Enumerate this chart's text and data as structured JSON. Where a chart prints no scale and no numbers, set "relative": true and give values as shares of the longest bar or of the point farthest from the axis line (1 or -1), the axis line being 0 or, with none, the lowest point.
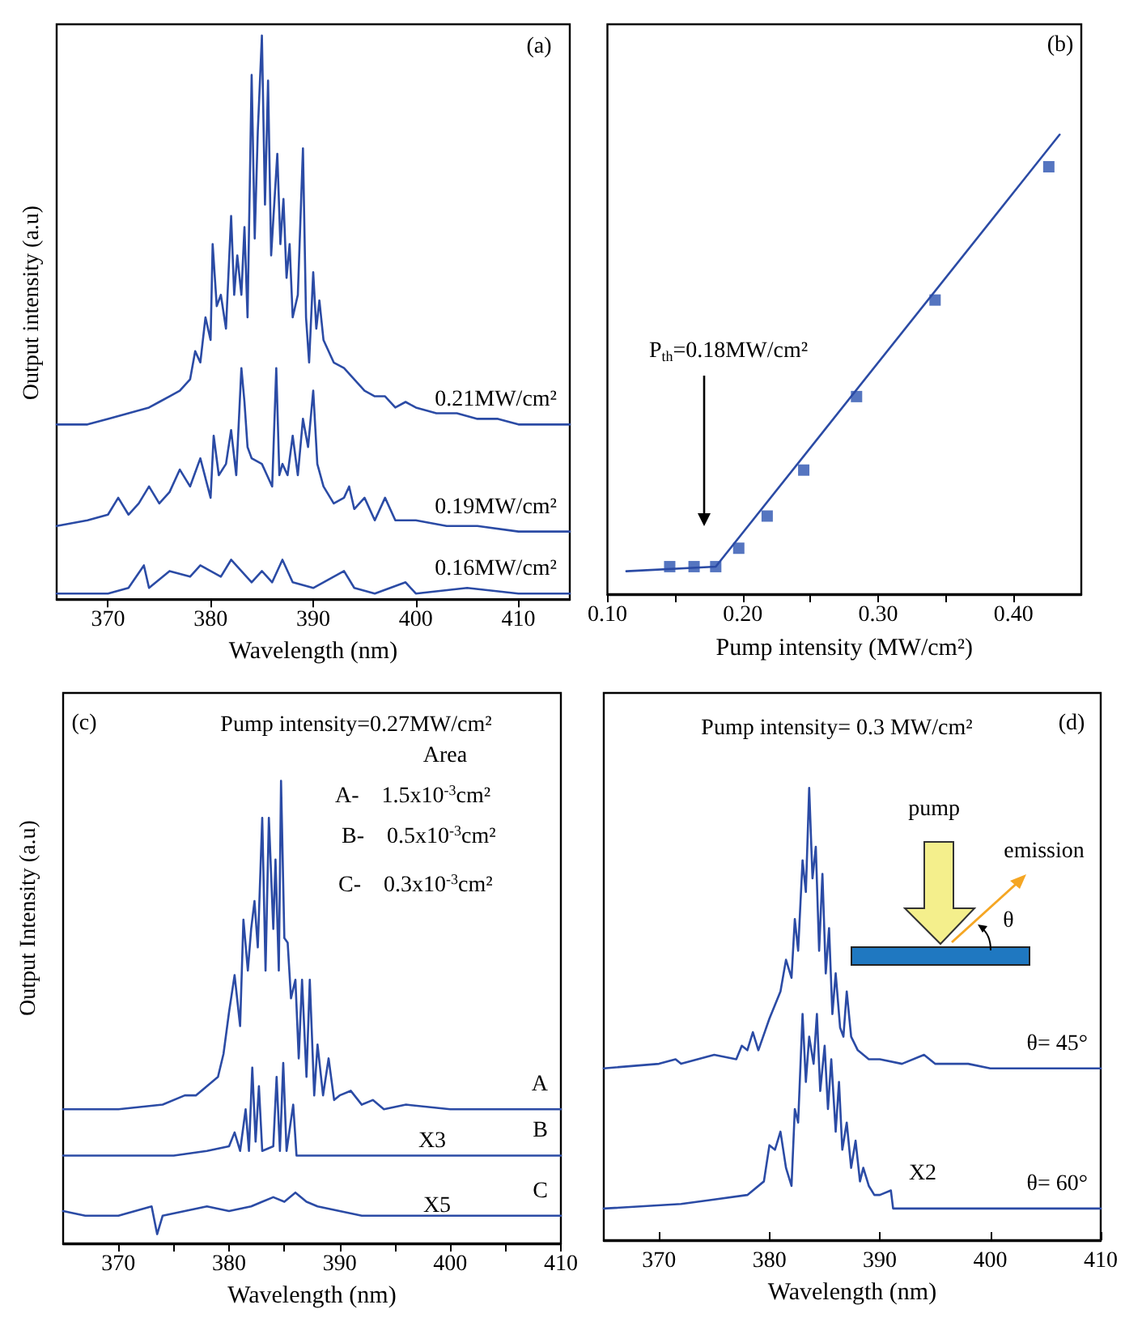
{
  "chart_data": [
    {
      "type": "line",
      "title": "(a)",
      "xlabel": "Wavelength (nm)",
      "ylabel": "Output intensity (a.u)",
      "relative": true,
      "xlim": [
        365,
        415
      ],
      "xticks": [
        370,
        380,
        390,
        400,
        410
      ],
      "tick_labels": "x",
      "series": [
        {
          "name": "0.21MW/cm²",
          "color": "#2b4ba5",
          "x": [
            365,
            368,
            370,
            372,
            374,
            375,
            376,
            377,
            378,
            378.5,
            379,
            379.5,
            380,
            380.2,
            380.6,
            381,
            381.5,
            382,
            382.3,
            382.6,
            383,
            383.3,
            383.6,
            384,
            384.3,
            384.6,
            385,
            385.3,
            385.6,
            385.9,
            386.2,
            386.5,
            386.8,
            387.1,
            387.4,
            387.7,
            388,
            388.5,
            389,
            389.3,
            389.6,
            390,
            390.3,
            390.6,
            391,
            392,
            393,
            394,
            395,
            396,
            397,
            398,
            399,
            400,
            402,
            404,
            406,
            408,
            410,
            412,
            415
          ],
          "values": [
            0.31,
            0.31,
            0.32,
            0.33,
            0.34,
            0.35,
            0.36,
            0.37,
            0.39,
            0.44,
            0.42,
            0.5,
            0.46,
            0.63,
            0.52,
            0.54,
            0.48,
            0.68,
            0.54,
            0.61,
            0.54,
            0.66,
            0.5,
            0.93,
            0.64,
            0.83,
            1.0,
            0.7,
            0.92,
            0.61,
            0.7,
            0.79,
            0.63,
            0.71,
            0.57,
            0.63,
            0.5,
            0.54,
            0.8,
            0.5,
            0.42,
            0.58,
            0.48,
            0.53,
            0.46,
            0.42,
            0.41,
            0.39,
            0.37,
            0.36,
            0.36,
            0.34,
            0.35,
            0.34,
            0.33,
            0.33,
            0.32,
            0.32,
            0.31,
            0.31,
            0.31
          ]
        },
        {
          "name": "0.19MW/cm²",
          "color": "#2b4ba5",
          "x": [
            365,
            368,
            370,
            371,
            372,
            373,
            374,
            375,
            376,
            377,
            378,
            379,
            380,
            380.3,
            380.8,
            381.5,
            382,
            382.5,
            383,
            383.3,
            383.6,
            384,
            385,
            385.5,
            386,
            386.4,
            386.7,
            387,
            387.5,
            388,
            388.5,
            389,
            389.5,
            390,
            390.4,
            391,
            392,
            393,
            393.5,
            394,
            395,
            396,
            397,
            398,
            400,
            403,
            406,
            410,
            415
          ],
          "values": [
            0.13,
            0.14,
            0.15,
            0.18,
            0.15,
            0.17,
            0.2,
            0.17,
            0.19,
            0.23,
            0.2,
            0.25,
            0.18,
            0.29,
            0.22,
            0.24,
            0.3,
            0.22,
            0.41,
            0.35,
            0.27,
            0.25,
            0.24,
            0.22,
            0.2,
            0.41,
            0.22,
            0.24,
            0.22,
            0.29,
            0.22,
            0.32,
            0.27,
            0.37,
            0.24,
            0.2,
            0.17,
            0.18,
            0.2,
            0.16,
            0.18,
            0.14,
            0.18,
            0.14,
            0.14,
            0.13,
            0.13,
            0.12,
            0.12
          ]
        },
        {
          "name": "0.16MW/cm²",
          "color": "#2b4ba5",
          "x": [
            365,
            368,
            370,
            372,
            373.5,
            374,
            376,
            378,
            379,
            380,
            381,
            382,
            383,
            384,
            385,
            386,
            387,
            388,
            390,
            393,
            394,
            396,
            399,
            400,
            405,
            410,
            415
          ],
          "values": [
            0.01,
            0.01,
            0.01,
            0.02,
            0.06,
            0.02,
            0.05,
            0.04,
            0.06,
            0.05,
            0.04,
            0.07,
            0.05,
            0.03,
            0.05,
            0.03,
            0.07,
            0.03,
            0.02,
            0.05,
            0.02,
            0.01,
            0.03,
            0.01,
            0.02,
            0.01,
            0.01
          ]
        }
      ]
    },
    {
      "type": "scatter",
      "title": "(b)",
      "xlabel": "Pump intensity (MW/cm²)",
      "relative": true,
      "xlim": [
        0.1,
        0.45
      ],
      "xticks": [
        {
          "value": 0.1,
          "label": "0.10"
        },
        {
          "value": 0.15,
          "label": null
        },
        {
          "value": 0.2,
          "label": "0.20"
        },
        {
          "value": 0.25,
          "label": null
        },
        {
          "value": 0.3,
          "label": "0.30"
        },
        {
          "value": 0.35,
          "label": null
        },
        {
          "value": 0.4,
          "label": "0.40"
        }
      ],
      "tick_labels": "x",
      "marker": "square",
      "annotations": [
        "P$_{th}$=0.18MW/cm²"
      ],
      "series": [
        {
          "color": "#2a52b0",
          "x": [
            0.146,
            0.164,
            0.18,
            0.197,
            0.218,
            0.245,
            0.284,
            0.342,
            0.426
          ],
          "values": [
            0.06,
            0.06,
            0.06,
            0.1,
            0.17,
            0.27,
            0.43,
            0.64,
            0.93
          ]
        },
        {
          "type": "line",
          "marker": "none",
          "color": "#2b4ba5",
          "x": [
            0.114,
            0.18,
            0.434
          ],
          "values": [
            0.05,
            0.06,
            1.0
          ]
        }
      ]
    },
    {
      "type": "line",
      "title": "(c)",
      "xlabel": "Wavelength (nm)",
      "ylabel": "Output Intensity (a.u)",
      "relative": true,
      "xlim": [
        365,
        410
      ],
      "xticks": [
        370,
        {
          "value": 375,
          "label": null
        },
        380,
        {
          "value": 385,
          "label": null
        },
        390,
        {
          "value": 395,
          "label": null
        },
        400,
        {
          "value": 405,
          "label": null
        },
        410
      ],
      "tick_labels": "x",
      "annotations": [
        "Pump intensity=0.27MW/cm²",
        "Area",
        "A-    1.5x10$^{-3}$cm²",
        "B-    0.5x10$^{-3}$cm²",
        "C-    0.3x10$^{-3}$cm²",
        "X3",
        "X5"
      ],
      "series": [
        {
          "name": "A",
          "color": "#2b4ba5",
          "x": [
            365,
            370,
            374,
            376,
            377,
            378,
            379,
            379.5,
            380,
            380.5,
            381,
            381.3,
            381.7,
            382,
            382.3,
            382.6,
            383,
            383.3,
            383.6,
            384,
            384.2,
            384.5,
            384.7,
            385,
            385.3,
            385.6,
            386,
            386.3,
            386.6,
            387,
            387.3,
            387.7,
            388,
            388.5,
            389,
            389.5,
            390,
            391,
            392,
            393,
            394,
            396,
            400,
            405,
            410
          ],
          "values": [
            0.29,
            0.29,
            0.3,
            0.32,
            0.32,
            0.34,
            0.36,
            0.41,
            0.5,
            0.58,
            0.47,
            0.7,
            0.59,
            0.68,
            0.74,
            0.64,
            0.92,
            0.59,
            0.92,
            0.68,
            0.83,
            0.59,
            1.0,
            0.66,
            0.65,
            0.53,
            0.57,
            0.4,
            0.57,
            0.36,
            0.57,
            0.32,
            0.43,
            0.32,
            0.4,
            0.31,
            0.32,
            0.33,
            0.3,
            0.31,
            0.29,
            0.3,
            0.29,
            0.29,
            0.29
          ]
        },
        {
          "name": "B",
          "color": "#2b4ba5",
          "x": [
            365,
            375,
            378,
            380,
            380.5,
            381,
            381.5,
            381.8,
            382.1,
            382.4,
            382.7,
            383,
            384,
            384.3,
            384.6,
            384.9,
            385.2,
            385.8,
            386.1,
            390,
            400,
            410
          ],
          "values": [
            0.19,
            0.19,
            0.2,
            0.21,
            0.24,
            0.2,
            0.29,
            0.2,
            0.38,
            0.22,
            0.34,
            0.2,
            0.21,
            0.36,
            0.2,
            0.39,
            0.2,
            0.3,
            0.19,
            0.19,
            0.19,
            0.19
          ]
        },
        {
          "name": "C",
          "color": "#2b4ba5",
          "x": [
            365,
            367,
            370,
            373,
            373.5,
            374,
            376,
            378,
            380,
            382,
            383,
            384,
            385,
            386,
            387,
            388,
            390,
            392,
            395,
            398,
            400,
            405,
            410
          ],
          "values": [
            0.07,
            0.06,
            0.06,
            0.08,
            0.02,
            0.06,
            0.07,
            0.08,
            0.07,
            0.08,
            0.09,
            0.1,
            0.09,
            0.11,
            0.09,
            0.08,
            0.07,
            0.06,
            0.06,
            0.06,
            0.06,
            0.06,
            0.06
          ]
        }
      ]
    },
    {
      "type": "line",
      "title": "(d)",
      "xlabel": "Wavelength (nm)",
      "relative": true,
      "xlim": [
        365,
        410
      ],
      "xticks": [
        370,
        380,
        390,
        400,
        410
      ],
      "tick_labels": "x",
      "annotations": [
        "Pump intensity= 0.3 MW/cm²",
        "pump",
        "emission",
        "θ",
        "X2"
      ],
      "series": [
        {
          "name": "θ= 45°",
          "color": "#2b4ba5",
          "x": [
            365,
            370,
            371.5,
            372,
            375,
            377,
            377.5,
            378,
            378.5,
            379,
            380,
            380.5,
            381,
            381.5,
            382,
            382.3,
            382.6,
            383,
            383.3,
            383.6,
            383.9,
            384.2,
            384.5,
            384.8,
            385.1,
            385.4,
            385.7,
            386,
            386.4,
            386.7,
            387,
            387.4,
            388,
            389,
            390,
            392,
            394,
            395,
            398,
            400,
            405,
            410
          ],
          "values": [
            0.38,
            0.39,
            0.4,
            0.39,
            0.41,
            0.4,
            0.43,
            0.42,
            0.46,
            0.42,
            0.49,
            0.52,
            0.55,
            0.62,
            0.58,
            0.71,
            0.64,
            0.84,
            0.77,
            1.0,
            0.8,
            0.87,
            0.64,
            0.81,
            0.59,
            0.69,
            0.5,
            0.59,
            0.47,
            0.45,
            0.55,
            0.45,
            0.42,
            0.4,
            0.4,
            0.39,
            0.41,
            0.39,
            0.39,
            0.38,
            0.38,
            0.38
          ]
        },
        {
          "name": "θ= 60°",
          "color": "#2b4ba5",
          "x": [
            365,
            372,
            375,
            378,
            379.5,
            380,
            380.5,
            381,
            381.5,
            382,
            382.3,
            382.6,
            383,
            383.3,
            383.6,
            384,
            384.3,
            384.6,
            385,
            385.3,
            385.6,
            386,
            386.3,
            386.6,
            387,
            387.4,
            387.8,
            388.2,
            388.5,
            389,
            389.5,
            390,
            391,
            391.2,
            395,
            400,
            410
          ],
          "values": [
            0.07,
            0.08,
            0.09,
            0.1,
            0.13,
            0.21,
            0.2,
            0.24,
            0.16,
            0.12,
            0.29,
            0.26,
            0.5,
            0.35,
            0.45,
            0.39,
            0.5,
            0.33,
            0.43,
            0.29,
            0.4,
            0.24,
            0.35,
            0.2,
            0.26,
            0.16,
            0.22,
            0.13,
            0.16,
            0.12,
            0.1,
            0.1,
            0.11,
            0.07,
            0.07,
            0.07,
            0.07
          ]
        }
      ]
    }
  ]
}
